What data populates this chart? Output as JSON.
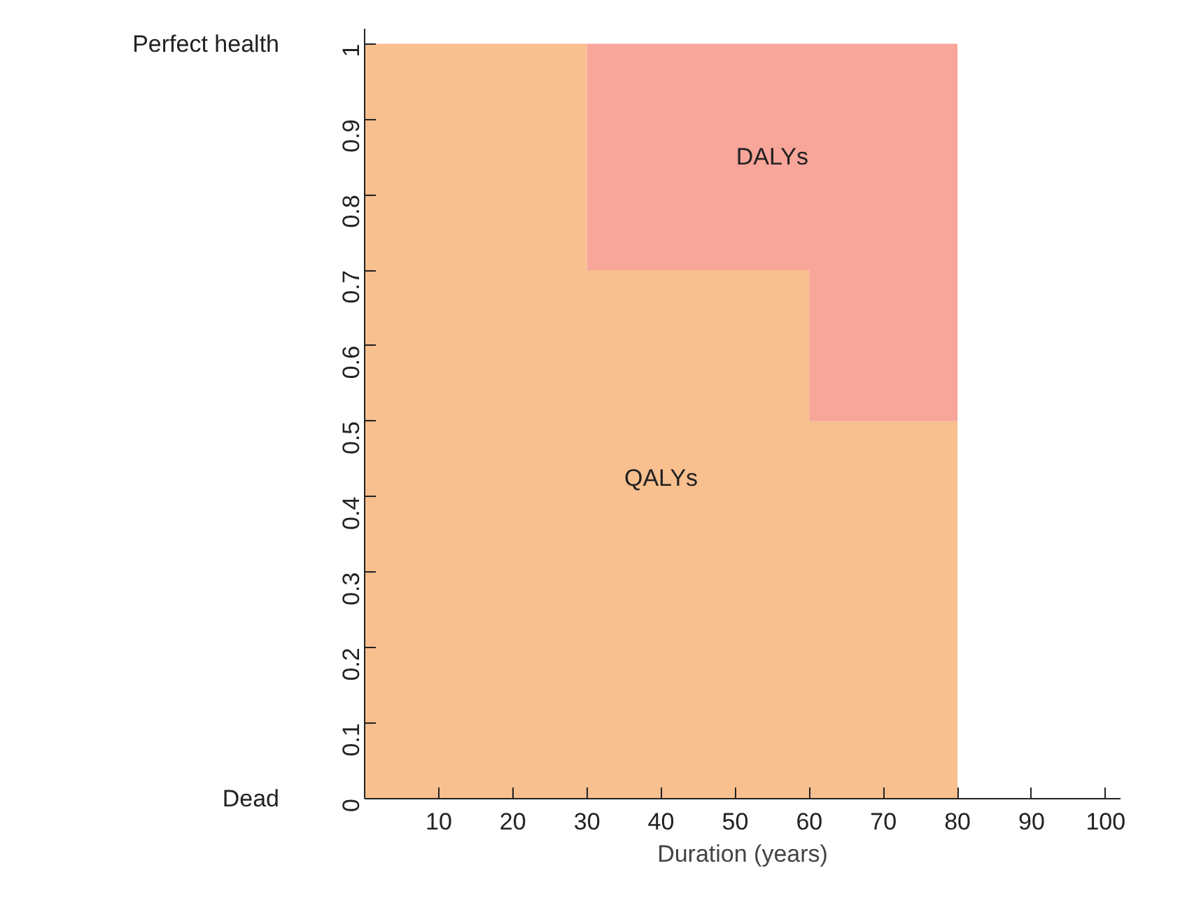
{
  "chart_data": {
    "type": "area",
    "stacked": true,
    "xlabel": "Duration (years)",
    "series": [
      {
        "name": "QALYs",
        "color": "#f8bf8f",
        "x": [
          0,
          30,
          30,
          60,
          60,
          80
        ],
        "values": [
          1,
          1,
          0.7,
          0.7,
          0.5,
          0.5
        ]
      },
      {
        "name": "DALYs",
        "color": "#f8a59a",
        "x": [
          0,
          30,
          30,
          60,
          60,
          80
        ],
        "values": [
          0,
          0,
          0.3,
          0.3,
          0.5,
          0.5
        ]
      }
    ],
    "annotations": [
      "Perfect health",
      "Dead"
    ],
    "xlim": [
      0,
      102
    ],
    "ylim": [
      0,
      1.02
    ],
    "xticks": [
      10,
      20,
      30,
      40,
      50,
      60,
      70,
      80,
      90,
      100
    ],
    "yticks": [
      0,
      0.1,
      0.2,
      0.3,
      0.4,
      0.5,
      0.6,
      0.7,
      0.8,
      0.9,
      1
    ],
    "grid": false
  }
}
